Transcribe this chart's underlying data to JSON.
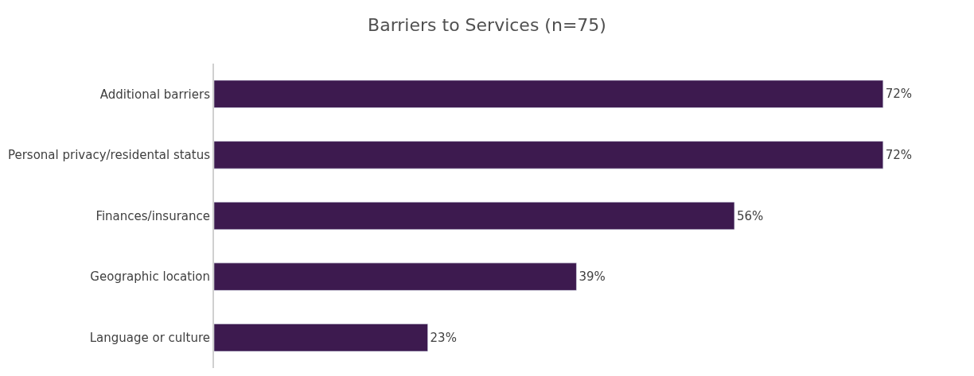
{
  "chart_data": {
    "type": "bar",
    "orientation": "horizontal",
    "title": "Barriers to Services (n=75)",
    "categories": [
      "Additional barriers",
      "Personal privacy/residental status",
      "Finances/insurance",
      "Geographic location",
      "Language or culture"
    ],
    "values": [
      72,
      72,
      56,
      39,
      23
    ],
    "value_labels": [
      "72%",
      "72%",
      "56%",
      "39%",
      "23%"
    ],
    "color": "#3d1a4f"
  }
}
